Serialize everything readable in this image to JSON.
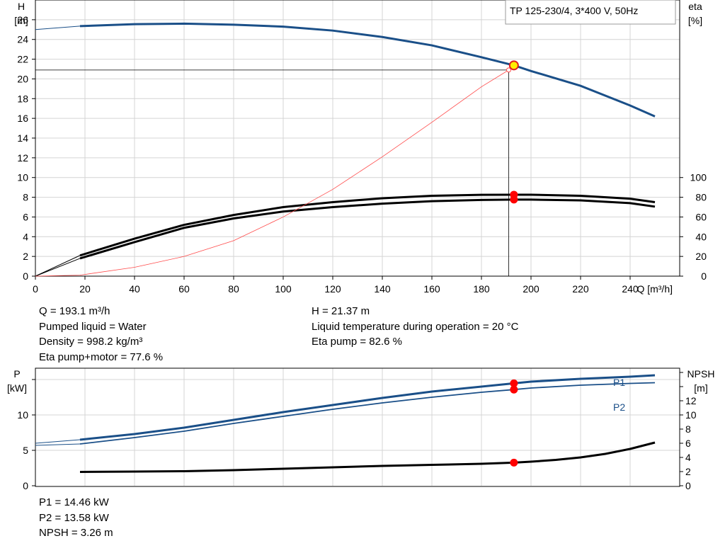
{
  "title": "TP 125-230/4, 3*400 V, 50Hz",
  "colors": {
    "head": "#1a4f88",
    "eff": "#000000",
    "eta_total": "#ff4a4a",
    "op_point": "#ffee00",
    "marker": "#ff0000",
    "grid": "#d4d4d4"
  },
  "head_chart": {
    "left_axis_label": [
      "H",
      "[m]"
    ],
    "right_axis_label": [
      "eta",
      "[%]"
    ],
    "x_axis_label": "Q [m³/h]",
    "x_ticks": [
      "0",
      "20",
      "40",
      "60",
      "80",
      "100",
      "120",
      "140",
      "160",
      "180",
      "200",
      "220",
      "240"
    ],
    "y_ticks": [
      "0",
      "2",
      "4",
      "6",
      "8",
      "10",
      "12",
      "14",
      "16",
      "18",
      "20",
      "22",
      "24",
      "26"
    ],
    "eta_ticks": [
      "0",
      "20",
      "40",
      "60",
      "80",
      "100"
    ]
  },
  "power_chart": {
    "left_axis_label": [
      "P",
      "[kW]"
    ],
    "right_axis_label": [
      "NPSH",
      "[m]"
    ],
    "y_ticks": [
      "0",
      "5",
      "10"
    ],
    "npsh_ticks": [
      "0",
      "2",
      "4",
      "6",
      "8",
      "10",
      "12"
    ],
    "series_labels": [
      "P1",
      "P2"
    ]
  },
  "readout_1": {
    "left": [
      "Q = 193.1 m³/h",
      "Pumped liquid = Water",
      "Density = 998.2 kg/m³",
      "Eta pump+motor = 77.6 %"
    ],
    "right": [
      "H = 21.37 m",
      "Liquid temperature during operation = 20 °C",
      "Eta pump = 82.6 %"
    ]
  },
  "readout_2": [
    "P1 = 14.46 kW",
    "P2 = 13.58 kW",
    "NPSH = 3.26 m"
  ],
  "chart_data": [
    {
      "type": "line",
      "x_label": "Q [m³/h]",
      "y_label": "H [m]",
      "y2_label": "eta [%]",
      "xlim": [
        0,
        260
      ],
      "ylim": [
        0,
        28
      ],
      "y2lim": [
        0,
        100
      ],
      "grid": true,
      "series": [
        {
          "x": [
            0,
            18,
            40,
            60,
            80,
            100,
            120,
            140,
            160,
            180,
            193.1,
            200,
            220,
            240,
            250
          ],
          "y": [
            25.0,
            25.35,
            25.55,
            25.6,
            25.5,
            25.3,
            24.9,
            24.25,
            23.4,
            22.2,
            21.37,
            20.8,
            19.3,
            17.3,
            16.2
          ]
        },
        {
          "x": [
            0,
            18,
            40,
            60,
            80,
            100,
            120,
            140,
            160,
            180,
            193.1,
            200,
            220,
            240,
            250
          ],
          "y": [
            0,
            21,
            38,
            52,
            62,
            70,
            75,
            79,
            81.5,
            82.5,
            82.6,
            82.6,
            81.5,
            78.5,
            75
          ]
        },
        {
          "x": [
            0,
            18,
            40,
            60,
            80,
            100,
            120,
            140,
            160,
            180,
            193.1,
            200,
            220,
            240,
            250
          ],
          "y": [
            0,
            18,
            34.5,
            49,
            58.5,
            65.5,
            70,
            73.5,
            76,
            77.3,
            77.6,
            77.6,
            76.8,
            74,
            70.5
          ]
        },
        {
          "x": [
            0,
            18,
            40,
            60,
            80,
            100,
            120,
            140,
            160,
            180,
            191
          ],
          "y": [
            0,
            0.1,
            0.9,
            2.0,
            3.6,
            6.0,
            8.8,
            12.1,
            15.6,
            19.2,
            20.9
          ]
        }
      ]
    },
    {
      "type": "line",
      "x_label": "Q [m³/h]",
      "y_label": "P [kW]",
      "y2_label": "NPSH [m]",
      "xlim": [
        0,
        260
      ],
      "ylim": [
        0,
        16.6
      ],
      "y2lim": [
        0,
        16.6
      ],
      "grid": true,
      "series": [
        {
          "name": "P1",
          "x": [
            0,
            18,
            40,
            60,
            80,
            100,
            120,
            140,
            160,
            180,
            193.1,
            200,
            220,
            240,
            250
          ],
          "y": [
            6.0,
            6.5,
            7.3,
            8.2,
            9.3,
            10.4,
            11.4,
            12.4,
            13.3,
            14.0,
            14.46,
            14.7,
            15.1,
            15.4,
            15.6
          ]
        },
        {
          "name": "P2",
          "x": [
            0,
            18,
            40,
            60,
            80,
            100,
            120,
            140,
            160,
            180,
            193.1,
            200,
            220,
            240,
            250
          ],
          "y": [
            5.7,
            5.9,
            6.8,
            7.7,
            8.8,
            9.8,
            10.8,
            11.7,
            12.5,
            13.2,
            13.58,
            13.8,
            14.2,
            14.45,
            14.55
          ]
        },
        {
          "x": [
            18,
            40,
            60,
            80,
            100,
            120,
            140,
            160,
            180,
            193.1,
            200,
            210,
            220,
            230,
            240,
            250
          ],
          "y": [
            1.95,
            2.0,
            2.05,
            2.2,
            2.4,
            2.6,
            2.8,
            2.95,
            3.1,
            3.26,
            3.4,
            3.65,
            4.0,
            4.5,
            5.2,
            6.1
          ]
        }
      ]
    }
  ]
}
